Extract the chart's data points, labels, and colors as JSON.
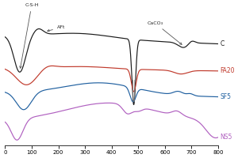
{
  "xlim": [
    0,
    800
  ],
  "xticks": [
    0,
    100,
    200,
    300,
    400,
    500,
    600,
    700,
    800
  ],
  "colors": {
    "C": "#1a1a1a",
    "FA20": "#c0392b",
    "SF5": "#2060a0",
    "NS5": "#b060c0"
  },
  "labels": {
    "C": "C",
    "FA20": "FA20",
    "SF5": "SF5",
    "NS5": "NS5"
  },
  "annotations": {
    "CSH": "C-S-H",
    "AFt": "AFt",
    "CaCO3": "CaCO₃"
  },
  "background": "#ffffff"
}
